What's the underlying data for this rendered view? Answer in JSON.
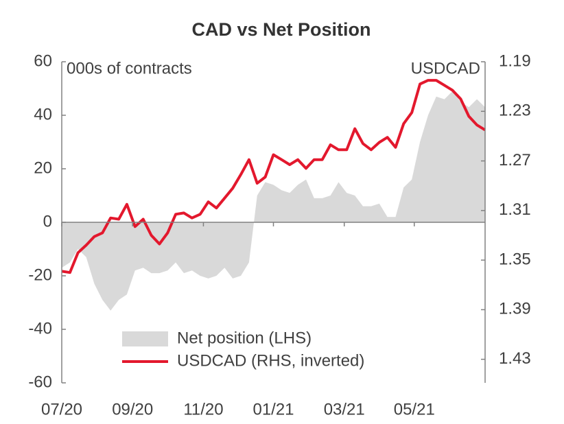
{
  "chart_data": {
    "type": "line",
    "title": "CAD vs Net Position",
    "ylabel": "000s of contracts",
    "y2label": "USDCAD",
    "x": [
      0,
      1,
      2,
      3,
      4,
      5,
      6,
      7,
      8,
      9,
      10,
      11,
      12,
      13,
      14,
      15,
      16,
      17,
      18,
      19,
      20,
      21,
      22,
      23,
      24,
      25,
      26,
      27,
      28,
      29,
      30,
      31,
      32,
      33,
      34,
      35,
      36,
      37,
      38,
      39,
      40,
      41,
      42,
      43,
      44,
      45,
      46,
      47,
      48,
      49,
      50,
      51,
      52
    ],
    "xlim": [
      0,
      52
    ],
    "xticks": [
      {
        "value": 0,
        "label": "07/20"
      },
      {
        "value": 8.7,
        "label": "09/20"
      },
      {
        "value": 17.4,
        "label": "11/20"
      },
      {
        "value": 26,
        "label": "01/21"
      },
      {
        "value": 34.7,
        "label": "03/21"
      },
      {
        "value": 43.3,
        "label": "05/21"
      }
    ],
    "ylim": [
      -60,
      60
    ],
    "yticks": [
      -60,
      -40,
      -20,
      0,
      20,
      40,
      60
    ],
    "y2lim": [
      1.19,
      1.449
    ],
    "y2ticks": [
      1.19,
      1.23,
      1.27,
      1.31,
      1.35,
      1.39,
      1.43
    ],
    "y2_inverted": true,
    "series": [
      {
        "name": "Net position (LHS)",
        "type": "area",
        "color": "#d9d9d9",
        "values": [
          -17,
          -15,
          -10,
          -13,
          -23,
          -29,
          -33,
          -29,
          -27,
          -18,
          -17,
          -19,
          -19,
          -18,
          -15,
          -19,
          -18,
          -20,
          -21,
          -20,
          -17,
          -21,
          -20,
          -15,
          10,
          15,
          14,
          12,
          11,
          14,
          16,
          9,
          9,
          10,
          15,
          11,
          10,
          6,
          6,
          7,
          2,
          2,
          13,
          16,
          30,
          40,
          47,
          46,
          49,
          45,
          43,
          46,
          43
        ]
      },
      {
        "name": "USDCAD (RHS, inverted)",
        "type": "line",
        "axis": "y2",
        "color": "#e3182d",
        "values": [
          1.359,
          1.36,
          1.344,
          1.338,
          1.331,
          1.328,
          1.316,
          1.317,
          1.305,
          1.323,
          1.317,
          1.33,
          1.337,
          1.328,
          1.313,
          1.312,
          1.316,
          1.313,
          1.303,
          1.308,
          1.3,
          1.292,
          1.281,
          1.269,
          1.288,
          1.283,
          1.265,
          1.269,
          1.273,
          1.269,
          1.276,
          1.269,
          1.269,
          1.257,
          1.261,
          1.261,
          1.244,
          1.256,
          1.261,
          1.255,
          1.251,
          1.259,
          1.24,
          1.231,
          1.208,
          1.205,
          1.205,
          1.209,
          1.213,
          1.22,
          1.234,
          1.241,
          1.245
        ]
      }
    ]
  }
}
